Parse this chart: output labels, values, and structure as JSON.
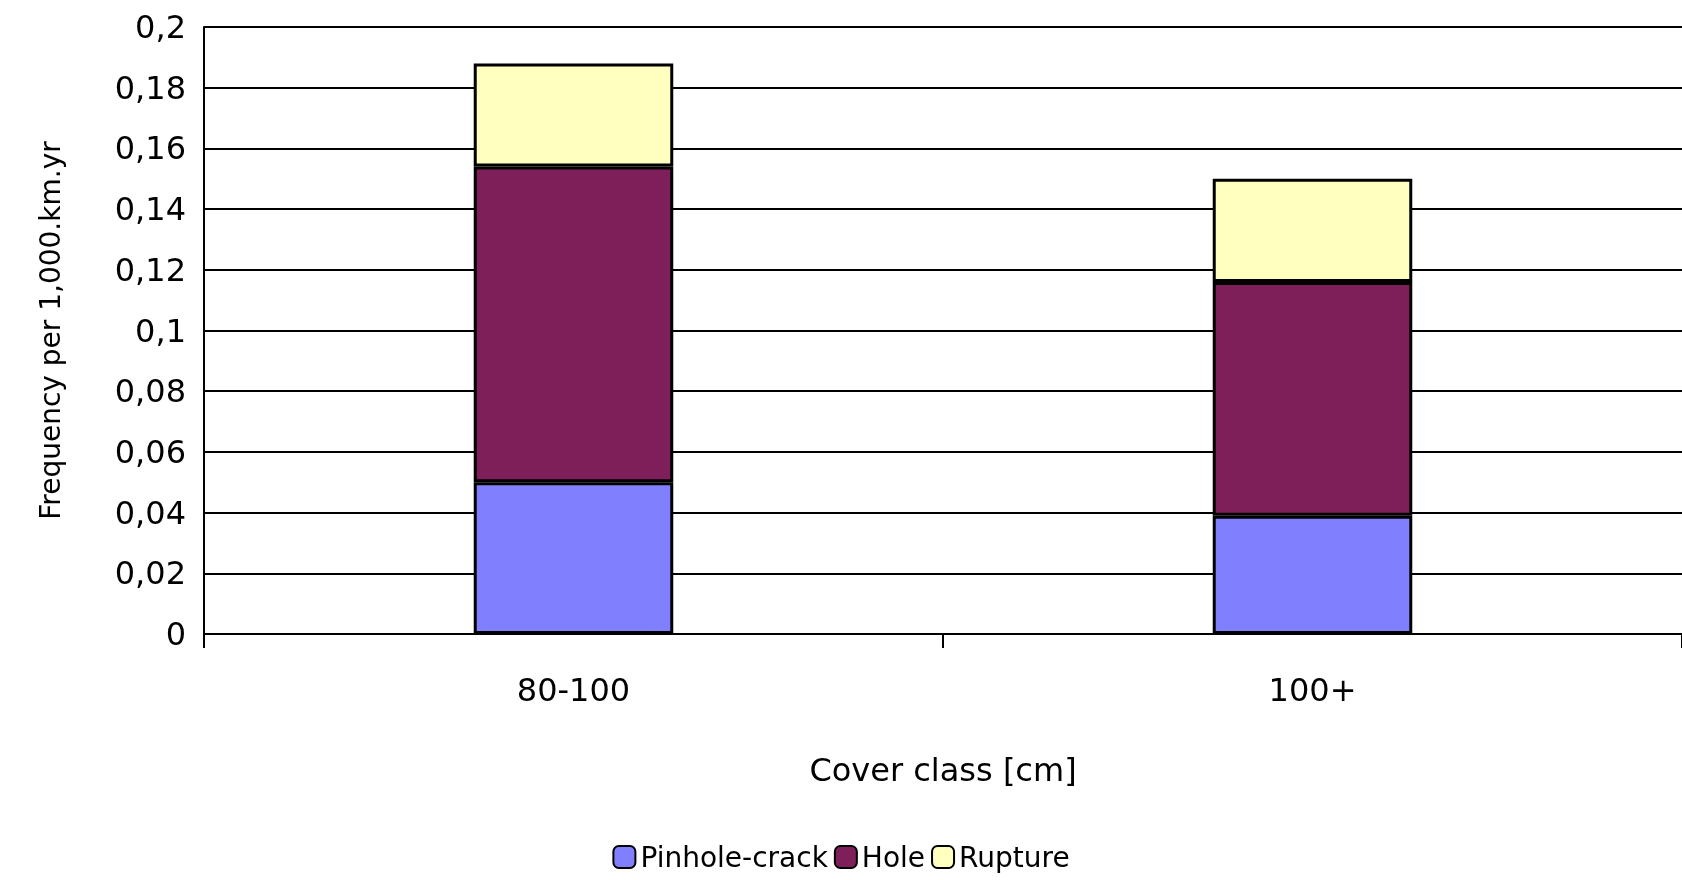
{
  "chart_data": {
    "type": "bar",
    "stacked": true,
    "xlabel": "Cover class [cm]",
    "ylabel": "Frequency per 1,000.km.yr",
    "categories": [
      "80-100",
      "100+"
    ],
    "series": [
      {
        "name": "Pinhole-crack",
        "color": "#8080ff",
        "values": [
          0.05,
          0.039
        ]
      },
      {
        "name": "Hole",
        "color": "#7f1f5a",
        "values": [
          0.104,
          0.077
        ]
      },
      {
        "name": "Rupture",
        "color": "#ffffc0",
        "values": [
          0.034,
          0.034
        ]
      }
    ],
    "ylim": [
      0,
      0.2
    ],
    "yticks": [
      0,
      {
        "value": 0.02,
        "label": "0,02"
      },
      {
        "value": 0.04,
        "label": "0,04"
      },
      {
        "value": 0.06,
        "label": "0,06"
      },
      {
        "value": 0.08,
        "label": "0,08"
      },
      {
        "value": 0.1,
        "label": "0,1"
      },
      {
        "value": 0.12,
        "label": "0,12"
      },
      {
        "value": 0.14,
        "label": "0,14"
      },
      {
        "value": 0.16,
        "label": "0,16"
      },
      {
        "value": 0.18,
        "label": "0,18"
      },
      {
        "value": 0.2,
        "label": "0,2"
      }
    ],
    "grid": "y",
    "legend": "bottom"
  }
}
